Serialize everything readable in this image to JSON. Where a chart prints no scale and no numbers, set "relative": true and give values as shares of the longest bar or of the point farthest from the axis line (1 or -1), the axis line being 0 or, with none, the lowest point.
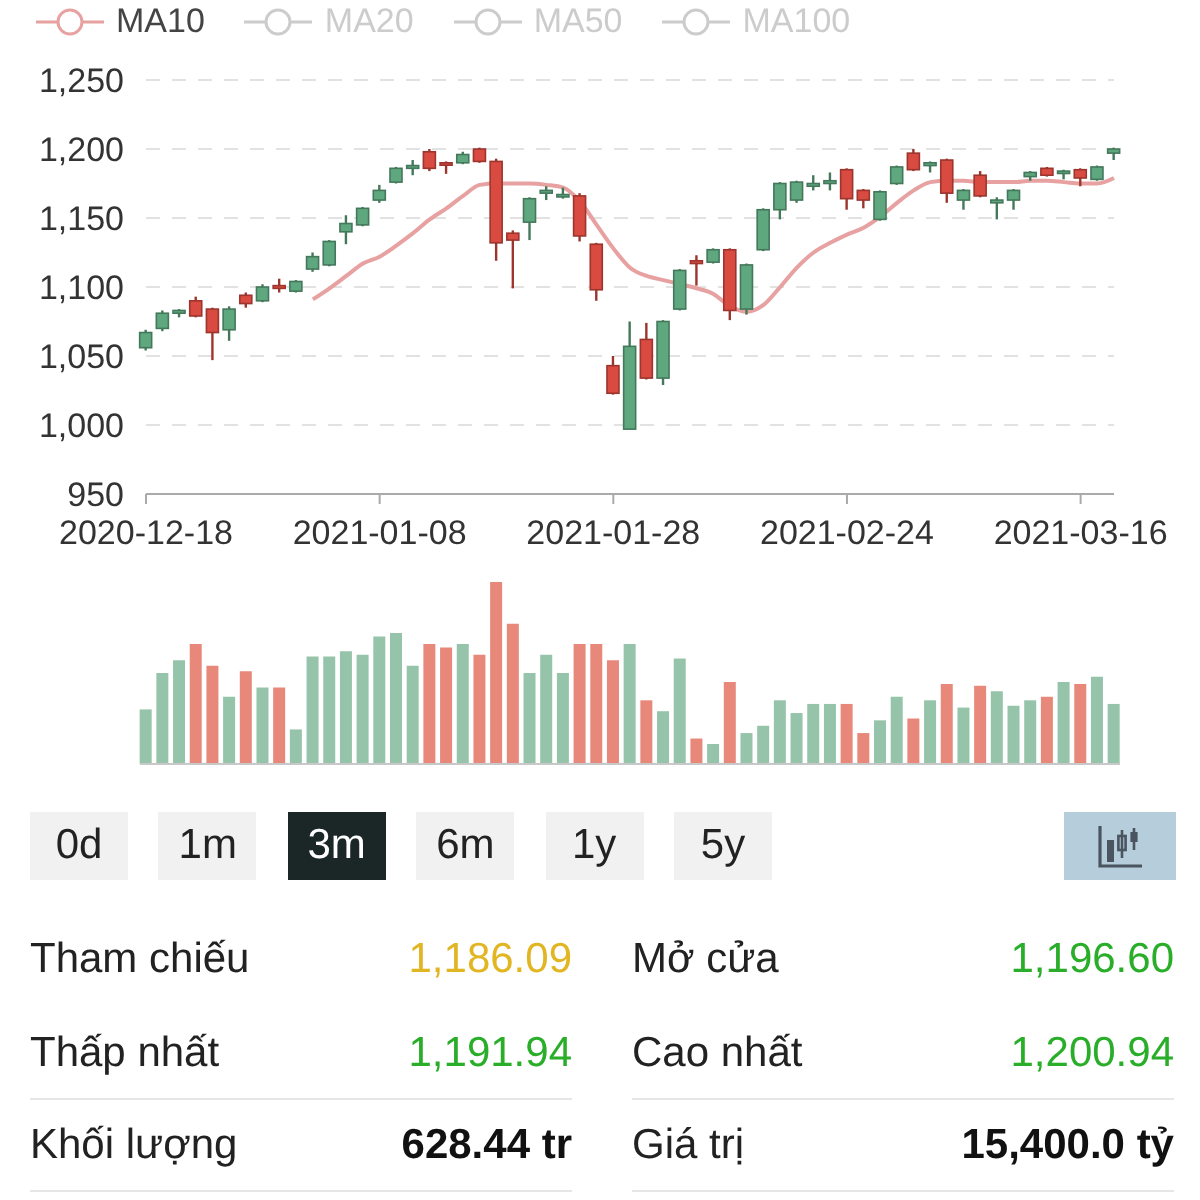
{
  "chart_data": [
    {
      "type": "candlestick",
      "categories": [
        "2020-12-18",
        null,
        null,
        null,
        null,
        null,
        null,
        null,
        null,
        null,
        null,
        null,
        null,
        null,
        "2021-01-08",
        null,
        null,
        null,
        null,
        null,
        null,
        null,
        null,
        null,
        null,
        null,
        null,
        null,
        "2021-01-28",
        null,
        null,
        null,
        null,
        null,
        null,
        null,
        null,
        null,
        null,
        null,
        null,
        null,
        "2021-02-24",
        null,
        null,
        null,
        null,
        null,
        null,
        null,
        null,
        null,
        null,
        null,
        null,
        null,
        "2021-03-16",
        null,
        null
      ],
      "ohlc": [
        [
          1056,
          1069,
          1054,
          1067
        ],
        [
          1070,
          1083,
          1068,
          1081
        ],
        [
          1081,
          1084,
          1078,
          1083
        ],
        [
          1090,
          1093,
          1078,
          1079
        ],
        [
          1084,
          1085,
          1047,
          1067
        ],
        [
          1069,
          1086,
          1061,
          1084
        ],
        [
          1094,
          1096,
          1085,
          1088
        ],
        [
          1090,
          1102,
          1089,
          1100
        ],
        [
          1101,
          1106,
          1096,
          1099
        ],
        [
          1097,
          1105,
          1096,
          1104
        ],
        [
          1113,
          1125,
          1111,
          1122
        ],
        [
          1116,
          1134,
          1115,
          1133
        ],
        [
          1140,
          1152,
          1131,
          1146
        ],
        [
          1145,
          1158,
          1144,
          1157
        ],
        [
          1163,
          1174,
          1161,
          1170
        ],
        [
          1176,
          1187,
          1175,
          1186
        ],
        [
          1186,
          1192,
          1181,
          1188
        ],
        [
          1198,
          1200,
          1184,
          1186
        ],
        [
          1190,
          1191,
          1182,
          1189
        ],
        [
          1190,
          1198,
          1189,
          1196
        ],
        [
          1200,
          1201,
          1190,
          1191
        ],
        [
          1191,
          1193,
          1119,
          1132
        ],
        [
          1139,
          1141,
          1099,
          1134
        ],
        [
          1147,
          1165,
          1134,
          1164
        ],
        [
          1168,
          1173,
          1163,
          1170
        ],
        [
          1166,
          1172,
          1164,
          1167
        ],
        [
          1166,
          1168,
          1133,
          1137
        ],
        [
          1131,
          1132,
          1090,
          1098
        ],
        [
          1043,
          1050,
          1022,
          1023
        ],
        [
          997,
          1075,
          997,
          1057
        ],
        [
          1062,
          1074,
          1033,
          1034
        ],
        [
          1034,
          1076,
          1029,
          1075
        ],
        [
          1084,
          1113,
          1083,
          1112
        ],
        [
          1119,
          1123,
          1101,
          1117
        ],
        [
          1118,
          1128,
          1117,
          1127
        ],
        [
          1127,
          1128,
          1076,
          1083
        ],
        [
          1084,
          1117,
          1080,
          1116
        ],
        [
          1127,
          1157,
          1126,
          1156
        ],
        [
          1156,
          1176,
          1149,
          1175
        ],
        [
          1163,
          1177,
          1161,
          1176
        ],
        [
          1173,
          1181,
          1170,
          1175
        ],
        [
          1175,
          1183,
          1170,
          1177
        ],
        [
          1185,
          1186,
          1156,
          1164
        ],
        [
          1170,
          1171,
          1157,
          1163
        ],
        [
          1149,
          1170,
          1148,
          1169
        ],
        [
          1175,
          1188,
          1174,
          1187
        ],
        [
          1197,
          1200,
          1184,
          1185
        ],
        [
          1188,
          1191,
          1183,
          1190
        ],
        [
          1192,
          1193,
          1161,
          1168
        ],
        [
          1163,
          1171,
          1156,
          1170
        ],
        [
          1181,
          1184,
          1165,
          1166
        ],
        [
          1161,
          1165,
          1149,
          1163
        ],
        [
          1163,
          1171,
          1156,
          1170
        ],
        [
          1180,
          1184,
          1177,
          1183
        ],
        [
          1186,
          1187,
          1180,
          1181
        ],
        [
          1183,
          1185,
          1178,
          1184
        ],
        [
          1185,
          1186,
          1173,
          1179
        ],
        [
          1178,
          1188,
          1177,
          1187
        ],
        [
          1197,
          1201,
          1192,
          1200
        ]
      ],
      "colors": [
        "#5fa77e",
        "#5fa77e",
        "#5fa77e",
        "#d94a40",
        "#d94a40",
        "#5fa77e",
        "#d94a40",
        "#5fa77e",
        "#d94a40",
        "#5fa77e",
        "#5fa77e",
        "#5fa77e",
        "#5fa77e",
        "#5fa77e",
        "#5fa77e",
        "#5fa77e",
        "#5fa77e",
        "#d94a40",
        "#d94a40",
        "#5fa77e",
        "#d94a40",
        "#d94a40",
        "#d94a40",
        "#5fa77e",
        "#5fa77e",
        "#5fa77e",
        "#d94a40",
        "#d94a40",
        "#d94a40",
        "#5fa77e",
        "#d94a40",
        "#5fa77e",
        "#5fa77e",
        "#d94a40",
        "#5fa77e",
        "#d94a40",
        "#5fa77e",
        "#5fa77e",
        "#5fa77e",
        "#5fa77e",
        "#5fa77e",
        "#5fa77e",
        "#d94a40",
        "#d94a40",
        "#5fa77e",
        "#5fa77e",
        "#d94a40",
        "#5fa77e",
        "#d94a40",
        "#5fa77e",
        "#d94a40",
        "#5fa77e",
        "#5fa77e",
        "#5fa77e",
        "#d94a40",
        "#5fa77e",
        "#d94a40",
        "#5fa77e",
        "#5fa77e"
      ],
      "series": [
        {
          "name": "MA10",
          "type": "line",
          "color": "#e8a1a1",
          "values": [
            null,
            null,
            null,
            null,
            null,
            null,
            null,
            null,
            null,
            null,
            1091,
            1099,
            1108,
            1117,
            1122,
            1130,
            1139,
            1149,
            1157,
            1166,
            1174,
            1175,
            1175,
            1175,
            1174,
            1172,
            1162,
            1145,
            1128,
            1114,
            1108,
            1105,
            1102,
            1099,
            1095,
            1086,
            1082,
            1087,
            1100,
            1114,
            1125,
            1132,
            1138,
            1143,
            1151,
            1161,
            1170,
            1176,
            1177,
            1177,
            1176,
            1176,
            1176,
            1177,
            1177,
            1176,
            1175,
            1175,
            1179
          ]
        },
        {
          "name": "MA20",
          "type": "line",
          "color": "#cccccc",
          "values": [
            null,
            null,
            null,
            null,
            null,
            null,
            null,
            null,
            null,
            null,
            null,
            null,
            null,
            null,
            null,
            null,
            null,
            null,
            null,
            null,
            null,
            null,
            null,
            null,
            null,
            null,
            null,
            null,
            null,
            null,
            null,
            null,
            null,
            null,
            null,
            null,
            null,
            null,
            null,
            null,
            null,
            null,
            null,
            null,
            null,
            null,
            null,
            null,
            null,
            null,
            null,
            null,
            null,
            null,
            null,
            null,
            null,
            null,
            null
          ]
        },
        {
          "name": "MA50",
          "type": "line",
          "color": "#cccccc",
          "values": [
            null,
            null,
            null,
            null,
            null,
            null,
            null,
            null,
            null,
            null,
            null,
            null,
            null,
            null,
            null,
            null,
            null,
            null,
            null,
            null,
            null,
            null,
            null,
            null,
            null,
            null,
            null,
            null,
            null,
            null,
            null,
            null,
            null,
            null,
            null,
            null,
            null,
            null,
            null,
            null,
            null,
            null,
            null,
            null,
            null,
            null,
            null,
            null,
            null,
            null,
            null,
            null,
            null,
            null,
            null,
            null,
            null,
            null,
            null
          ]
        },
        {
          "name": "MA100",
          "type": "line",
          "color": "#cccccc",
          "values": [
            null,
            null,
            null,
            null,
            null,
            null,
            null,
            null,
            null,
            null,
            null,
            null,
            null,
            null,
            null,
            null,
            null,
            null,
            null,
            null,
            null,
            null,
            null,
            null,
            null,
            null,
            null,
            null,
            null,
            null,
            null,
            null,
            null,
            null,
            null,
            null,
            null,
            null,
            null,
            null,
            null,
            null,
            null,
            null,
            null,
            null,
            null,
            null,
            null,
            null,
            null,
            null,
            null,
            null,
            null,
            null,
            null,
            null,
            null
          ]
        }
      ],
      "ylim": [
        950,
        1250
      ],
      "yticks": [
        950,
        {
          "value": 1000,
          "label": "1,000"
        },
        {
          "value": 1050,
          "label": "1,050"
        },
        {
          "value": 1100,
          "label": "1,100"
        },
        {
          "value": 1150,
          "label": "1,150"
        },
        {
          "value": 1200,
          "label": "1,200"
        },
        {
          "value": 1250,
          "label": "1,250"
        }
      ],
      "grid": "y",
      "legend": "top left"
    },
    {
      "type": "bar",
      "categories": [
        null,
        null,
        null,
        null,
        null,
        null,
        null,
        null,
        null,
        null,
        null,
        null,
        null,
        null,
        null,
        null,
        null,
        null,
        null,
        null,
        null,
        null,
        null,
        null,
        null,
        null,
        null,
        null,
        null,
        null,
        null,
        null,
        null,
        null,
        null,
        null,
        null,
        null,
        null,
        null,
        null,
        null,
        null,
        null,
        null,
        null,
        null,
        null,
        null,
        null,
        null,
        null,
        null,
        null,
        null,
        null,
        null,
        null,
        null
      ],
      "values": [
        0.3,
        0.5,
        0.57,
        0.66,
        0.54,
        0.37,
        0.51,
        0.42,
        0.42,
        0.19,
        0.59,
        0.59,
        0.62,
        0.6,
        0.7,
        0.72,
        0.54,
        0.66,
        0.64,
        0.66,
        0.6,
        1,
        0.77,
        0.5,
        0.6,
        0.5,
        0.66,
        0.66,
        0.57,
        0.66,
        0.35,
        0.29,
        0.58,
        0.14,
        0.11,
        0.45,
        0.17,
        0.21,
        0.35,
        0.28,
        0.33,
        0.33,
        0.33,
        0.17,
        0.24,
        0.37,
        0.25,
        0.35,
        0.44,
        0.31,
        0.43,
        0.4,
        0.32,
        0.35,
        0.37,
        0.45,
        0.44,
        0.48,
        0.33
      ],
      "colors": [
        "#95c4aa",
        "#95c4aa",
        "#95c4aa",
        "#e8887a",
        "#e8887a",
        "#95c4aa",
        "#e8887a",
        "#95c4aa",
        "#e8887a",
        "#95c4aa",
        "#95c4aa",
        "#95c4aa",
        "#95c4aa",
        "#95c4aa",
        "#95c4aa",
        "#95c4aa",
        "#95c4aa",
        "#e8887a",
        "#e8887a",
        "#95c4aa",
        "#e8887a",
        "#e8887a",
        "#e8887a",
        "#95c4aa",
        "#95c4aa",
        "#95c4aa",
        "#e8887a",
        "#e8887a",
        "#e8887a",
        "#95c4aa",
        "#e8887a",
        "#95c4aa",
        "#95c4aa",
        "#e8887a",
        "#95c4aa",
        "#e8887a",
        "#95c4aa",
        "#95c4aa",
        "#95c4aa",
        "#95c4aa",
        "#95c4aa",
        "#95c4aa",
        "#e8887a",
        "#e8887a",
        "#95c4aa",
        "#95c4aa",
        "#e8887a",
        "#95c4aa",
        "#e8887a",
        "#95c4aa",
        "#e8887a",
        "#95c4aa",
        "#95c4aa",
        "#95c4aa",
        "#e8887a",
        "#95c4aa",
        "#e8887a",
        "#95c4aa",
        "#95c4aa"
      ],
      "relative": true
    },
    {
      "type": "other",
      "categories": [
        "0d",
        "1m",
        "3m",
        "6m",
        "1y",
        "5y"
      ]
    },
    {
      "type": "other",
      "annotations": [
        "Tham chiếu",
        "1,186.09",
        "Mở cửa",
        "1,196.60",
        "Thấp nhất",
        "1,191.94",
        "Cao nhất",
        "1,200.94",
        "Khối lượng",
        "628.44 tr",
        "Giá trị",
        "15,400.0 tỷ"
      ],
      "colors": [
        "#222222",
        "#e2b623",
        "#222222",
        "#2aae2a",
        "#222222",
        "#2aae2a",
        "#222222",
        "#2aae2a",
        "#222222",
        "#111111",
        "#222222",
        "#111111"
      ]
    }
  ]
}
